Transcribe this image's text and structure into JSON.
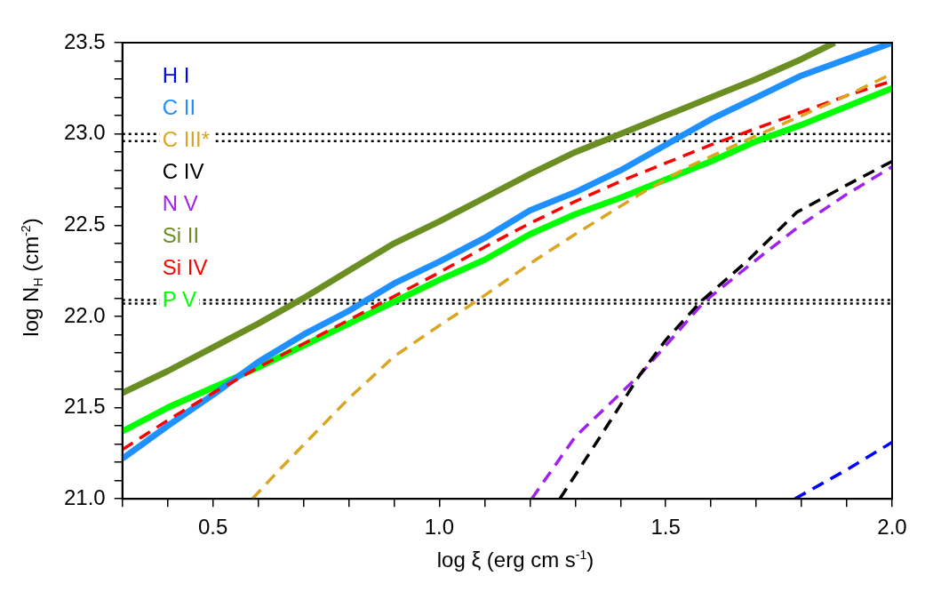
{
  "chart_data": {
    "type": "line",
    "xlabel": "log ξ (erg cm s$^{-1}$)",
    "ylabel": "log N$_{H}$ (cm$^{-2}$)",
    "xlim": [
      0.3,
      2.0
    ],
    "ylim": [
      21.0,
      23.5
    ],
    "xticks": [
      {
        "value": 0.3,
        "label": null
      },
      {
        "value": 0.4,
        "label": null
      },
      "0.5",
      {
        "value": 0.6,
        "label": null
      },
      {
        "value": 0.7,
        "label": null
      },
      {
        "value": 0.8,
        "label": null
      },
      {
        "value": 0.9,
        "label": null
      },
      {
        "value": 1.0,
        "label": "1.0"
      },
      {
        "value": 1.1,
        "label": null
      },
      {
        "value": 1.2,
        "label": null
      },
      {
        "value": 1.3,
        "label": null
      },
      {
        "value": 1.4,
        "label": null
      },
      {
        "value": 1.5,
        "label": "1.5"
      },
      {
        "value": 1.6,
        "label": null
      },
      {
        "value": 1.7,
        "label": null
      },
      {
        "value": 1.8,
        "label": null
      },
      {
        "value": 1.9,
        "label": null
      },
      {
        "value": 2.0,
        "label": "2.0"
      }
    ],
    "yticks": [
      {
        "value": 21.0,
        "label": "21.0"
      },
      {
        "value": 21.1,
        "label": null
      },
      {
        "value": 21.2,
        "label": null
      },
      {
        "value": 21.3,
        "label": null
      },
      {
        "value": 21.4,
        "label": null
      },
      {
        "value": 21.5,
        "label": "21.5"
      },
      {
        "value": 21.6,
        "label": null
      },
      {
        "value": 21.7,
        "label": null
      },
      {
        "value": 21.8,
        "label": null
      },
      {
        "value": 21.9,
        "label": null
      },
      {
        "value": 22.0,
        "label": "22.0"
      },
      {
        "value": 22.1,
        "label": null
      },
      {
        "value": 22.2,
        "label": null
      },
      {
        "value": 22.3,
        "label": null
      },
      {
        "value": 22.4,
        "label": null
      },
      {
        "value": 22.5,
        "label": "22.5"
      },
      {
        "value": 22.6,
        "label": null
      },
      {
        "value": 22.7,
        "label": null
      },
      {
        "value": 22.8,
        "label": null
      },
      {
        "value": 22.9,
        "label": null
      },
      {
        "value": 23.0,
        "label": "23.0"
      },
      {
        "value": 23.1,
        "label": null
      },
      {
        "value": 23.2,
        "label": null
      },
      {
        "value": 23.3,
        "label": null
      },
      {
        "value": 23.4,
        "label": null
      },
      {
        "value": 23.5,
        "label": "23.5"
      }
    ],
    "grid": false,
    "legend": "top left",
    "marker": "none",
    "ref_lines": [
      {
        "axis": "y",
        "value": 23.0,
        "color": "#000000",
        "line_style": "dotted"
      },
      {
        "axis": "y",
        "value": 22.96,
        "color": "#000000",
        "line_style": "dotted"
      },
      {
        "axis": "y",
        "value": 22.09,
        "color": "#000000",
        "line_style": "dotted"
      },
      {
        "axis": "y",
        "value": 22.07,
        "color": "#000000",
        "line_style": "dotted"
      }
    ],
    "series": [
      {
        "name": "H I",
        "color": "#0000ff",
        "line_style": "dashed",
        "x": [
          1.785,
          1.9,
          2.0
        ],
        "values": [
          21.0,
          21.16,
          21.31
        ]
      },
      {
        "name": "C II",
        "color": "#1e90ff",
        "line_style": "solid",
        "x": [
          0.3,
          0.4,
          0.5,
          0.6,
          0.7,
          0.8,
          0.9,
          1.0,
          1.1,
          1.2,
          1.3,
          1.4,
          1.5,
          1.6,
          1.7,
          1.8,
          1.9,
          2.0
        ],
        "values": [
          21.22,
          21.4,
          21.57,
          21.75,
          21.9,
          22.03,
          22.18,
          22.3,
          22.43,
          22.58,
          22.68,
          22.8,
          22.94,
          23.08,
          23.2,
          23.32,
          23.41,
          23.5
        ]
      },
      {
        "name": "C III*",
        "color": "#daa520",
        "line_style": "dashed",
        "x": [
          0.587,
          0.647,
          0.8,
          0.9,
          1.0,
          1.08,
          1.213,
          1.3,
          1.443,
          1.55,
          1.673,
          1.8,
          1.9,
          2.0
        ],
        "values": [
          21.0,
          21.16,
          21.55,
          21.78,
          21.95,
          22.08,
          22.31,
          22.45,
          22.67,
          22.82,
          22.96,
          23.1,
          23.21,
          23.33
        ]
      },
      {
        "name": "C IV",
        "color": "#000000",
        "line_style": "dashed",
        "x": [
          1.266,
          1.35,
          1.443,
          1.5,
          1.577,
          1.683,
          1.789,
          1.9,
          2.0
        ],
        "values": [
          21.0,
          21.32,
          21.68,
          21.87,
          22.08,
          22.31,
          22.57,
          22.72,
          22.85
        ]
      },
      {
        "name": "N V",
        "color": "#a020f0",
        "line_style": "dashed",
        "x": [
          1.204,
          1.3,
          1.443,
          1.5,
          1.585,
          1.7,
          1.798,
          1.9,
          2.0
        ],
        "values": [
          21.0,
          21.34,
          21.68,
          21.84,
          22.08,
          22.31,
          22.5,
          22.67,
          22.82
        ]
      },
      {
        "name": "Si II",
        "color": "#6b8e23",
        "line_style": "solid",
        "x": [
          0.3,
          0.4,
          0.5,
          0.6,
          0.7,
          0.8,
          0.9,
          1.0,
          1.1,
          1.2,
          1.3,
          1.4,
          1.5,
          1.6,
          1.7,
          1.8,
          1.873
        ],
        "values": [
          21.58,
          21.7,
          21.83,
          21.96,
          22.1,
          22.25,
          22.4,
          22.52,
          22.65,
          22.78,
          22.9,
          23.0,
          23.1,
          23.2,
          23.3,
          23.41,
          23.5
        ]
      },
      {
        "name": "Si IV",
        "color": "#ff0000",
        "line_style": "dashed",
        "x": [
          0.3,
          0.4,
          0.5,
          0.6,
          0.7,
          0.8,
          0.9,
          1.0,
          1.1,
          1.2,
          1.3,
          1.4,
          1.5,
          1.6,
          1.7,
          1.8,
          1.9,
          2.0
        ],
        "values": [
          21.27,
          21.43,
          21.58,
          21.72,
          21.85,
          21.98,
          22.11,
          22.24,
          22.38,
          22.51,
          22.63,
          22.74,
          22.84,
          22.94,
          23.03,
          23.12,
          23.21,
          23.29
        ]
      },
      {
        "name": "P V",
        "color": "#00ff00",
        "line_style": "solid",
        "x": [
          0.3,
          0.4,
          0.5,
          0.6,
          0.7,
          0.8,
          0.9,
          1.0,
          1.1,
          1.2,
          1.3,
          1.4,
          1.5,
          1.6,
          1.7,
          1.8,
          1.9,
          2.0
        ],
        "values": [
          21.37,
          21.5,
          21.61,
          21.72,
          21.84,
          21.96,
          22.08,
          22.2,
          22.31,
          22.45,
          22.56,
          22.65,
          22.75,
          22.85,
          22.96,
          23.05,
          23.15,
          23.25
        ]
      }
    ]
  }
}
